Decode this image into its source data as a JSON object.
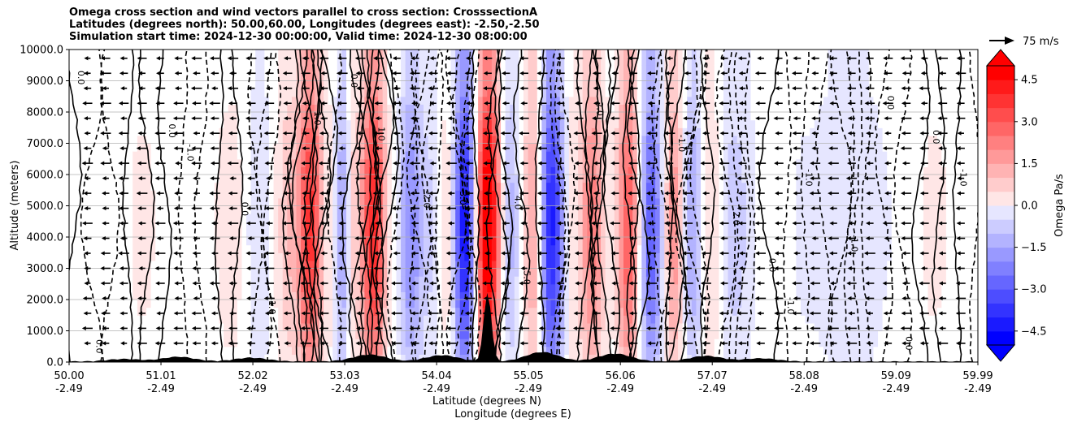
{
  "chart_data": {
    "type": "heatmap",
    "title_lines": [
      "Omega cross section and wind vectors parallel to cross section: CrosssectionA",
      "Latitudes (degrees north): 50.00,60.00, Longitudes (degrees east): -2.50,-2.50",
      "Simulation start time: 2024-12-30 00:00:00, Valid time: 2024-12-30 08:00:00"
    ],
    "ylabel": "Altitude (meters)",
    "xlabel_1": "Latitude (degrees N)",
    "xlabel_2": "Longitude (degrees E)",
    "ylim": [
      0,
      10000
    ],
    "xlim": [
      50.0,
      59.99
    ],
    "y_ticks": [
      {
        "value": 0,
        "label": "0.0"
      },
      {
        "value": 1000,
        "label": "1000.0"
      },
      {
        "value": 2000,
        "label": "2000.0"
      },
      {
        "value": 3000,
        "label": "3000.0"
      },
      {
        "value": 4000,
        "label": "4000.0"
      },
      {
        "value": 5000,
        "label": "5000.0"
      },
      {
        "value": 6000,
        "label": "6000.0"
      },
      {
        "value": 7000,
        "label": "7000.0"
      },
      {
        "value": 8000,
        "label": "8000.0"
      },
      {
        "value": 9000,
        "label": "9000.0"
      },
      {
        "value": 10000,
        "label": "10000.0"
      }
    ],
    "x_ticks": [
      {
        "value": 50.0,
        "lat": "50.00",
        "lon": "-2.49"
      },
      {
        "value": 51.01,
        "lat": "51.01",
        "lon": "-2.49"
      },
      {
        "value": 52.02,
        "lat": "52.02",
        "lon": "-2.49"
      },
      {
        "value": 53.03,
        "lat": "53.03",
        "lon": "-2.49"
      },
      {
        "value": 54.04,
        "lat": "54.04",
        "lon": "-2.49"
      },
      {
        "value": 55.05,
        "lat": "55.05",
        "lon": "-2.49"
      },
      {
        "value": 56.06,
        "lat": "56.06",
        "lon": "-2.49"
      },
      {
        "value": 57.07,
        "lat": "57.07",
        "lon": "-2.49"
      },
      {
        "value": 58.08,
        "lat": "58.08",
        "lon": "-2.49"
      },
      {
        "value": 59.09,
        "lat": "59.09",
        "lon": "-2.49"
      },
      {
        "value": 59.99,
        "lat": "59.99",
        "lon": "-2.49"
      }
    ],
    "colorbar": {
      "label": "Omega Pa/s",
      "min": -5.0,
      "max": 5.0,
      "step": 0.5,
      "ticks": [
        {
          "value": 4.5,
          "label": "4.5"
        },
        {
          "value": 3.0,
          "label": "3.0"
        },
        {
          "value": 1.5,
          "label": "1.5"
        },
        {
          "value": 0.0,
          "label": "0.0"
        },
        {
          "value": -1.5,
          "label": "−1.5"
        },
        {
          "value": -3.0,
          "label": "−3.0"
        },
        {
          "value": -4.5,
          "label": "−4.5"
        }
      ],
      "extend": "both"
    },
    "quiver_key": {
      "label": "75 m/s"
    },
    "omega_bands": [
      {
        "lat": 50.0,
        "omega": 0.2
      },
      {
        "lat": 50.4,
        "omega": -0.1
      },
      {
        "lat": 50.8,
        "omega": 0.3
      },
      {
        "lat": 51.3,
        "omega": -0.2
      },
      {
        "lat": 51.8,
        "omega": 0.4
      },
      {
        "lat": 52.1,
        "omega": -0.6
      },
      {
        "lat": 52.45,
        "omega": 1.2
      },
      {
        "lat": 52.65,
        "omega": 3.5
      },
      {
        "lat": 52.85,
        "omega": 0.5
      },
      {
        "lat": 53.0,
        "omega": -1.5
      },
      {
        "lat": 53.15,
        "omega": 1.0
      },
      {
        "lat": 53.35,
        "omega": 3.8
      },
      {
        "lat": 53.55,
        "omega": 0.2
      },
      {
        "lat": 53.75,
        "omega": -2.0
      },
      {
        "lat": 53.95,
        "omega": -0.8
      },
      {
        "lat": 54.15,
        "omega": 0.4
      },
      {
        "lat": 54.35,
        "omega": -4.0
      },
      {
        "lat": 54.6,
        "omega": 5.0
      },
      {
        "lat": 54.85,
        "omega": -1.2
      },
      {
        "lat": 55.1,
        "omega": 1.5
      },
      {
        "lat": 55.3,
        "omega": -3.8
      },
      {
        "lat": 55.55,
        "omega": 0.6
      },
      {
        "lat": 55.75,
        "omega": 2.2
      },
      {
        "lat": 55.95,
        "omega": 0.3
      },
      {
        "lat": 56.15,
        "omega": 2.8
      },
      {
        "lat": 56.4,
        "omega": -2.8
      },
      {
        "lat": 56.65,
        "omega": 1.8
      },
      {
        "lat": 56.85,
        "omega": -1.5
      },
      {
        "lat": 57.05,
        "omega": 0.6
      },
      {
        "lat": 57.3,
        "omega": -0.9
      },
      {
        "lat": 57.7,
        "omega": 0.1
      },
      {
        "lat": 58.1,
        "omega": -0.3
      },
      {
        "lat": 58.6,
        "omega": -0.6
      },
      {
        "lat": 59.1,
        "omega": -0.2
      },
      {
        "lat": 59.5,
        "omega": 0.3
      },
      {
        "lat": 59.99,
        "omega": -0.1
      }
    ],
    "contour_labels": [
      {
        "lat": 50.1,
        "alt": 9100,
        "text": "0.0"
      },
      {
        "lat": 51.1,
        "alt": 7400,
        "text": "0.0"
      },
      {
        "lat": 51.3,
        "alt": 6700,
        "text": "-1.0"
      },
      {
        "lat": 51.9,
        "alt": 4900,
        "text": "0.0"
      },
      {
        "lat": 52.7,
        "alt": 7800,
        "text": "1.0"
      },
      {
        "lat": 53.1,
        "alt": 9000,
        "text": "0.0"
      },
      {
        "lat": 53.4,
        "alt": 7300,
        "text": "1.0"
      },
      {
        "lat": 53.9,
        "alt": 5200,
        "text": "-2.0"
      },
      {
        "lat": 54.3,
        "alt": 5300,
        "text": "-3.0"
      },
      {
        "lat": 54.9,
        "alt": 5100,
        "text": "4.0"
      },
      {
        "lat": 55.0,
        "alt": 2700,
        "text": "5.0"
      },
      {
        "lat": 55.8,
        "alt": 8100,
        "text": "2.0"
      },
      {
        "lat": 56.7,
        "alt": 7000,
        "text": "-1.0"
      },
      {
        "lat": 57.3,
        "alt": 4600,
        "text": "2.0"
      },
      {
        "lat": 57.7,
        "alt": 3100,
        "text": "0.0"
      },
      {
        "lat": 57.9,
        "alt": 1800,
        "text": "-1.0"
      },
      {
        "lat": 58.1,
        "alt": 5900,
        "text": "-1.0"
      },
      {
        "lat": 58.6,
        "alt": 3800,
        "text": "-1.0"
      },
      {
        "lat": 59.0,
        "alt": 8300,
        "text": "0.0"
      },
      {
        "lat": 59.5,
        "alt": 7200,
        "text": "0.0"
      },
      {
        "lat": 59.8,
        "alt": 5900,
        "text": "-1.0"
      },
      {
        "lat": 59.2,
        "alt": 600,
        "text": "0.0"
      },
      {
        "lat": 52.2,
        "alt": 1800,
        "text": "-1.0"
      },
      {
        "lat": 50.3,
        "alt": 500,
        "text": "0.0"
      }
    ],
    "terrain_peaks": [
      {
        "lat": 50.6,
        "alt": 80
      },
      {
        "lat": 51.2,
        "alt": 150
      },
      {
        "lat": 52.0,
        "alt": 120
      },
      {
        "lat": 53.3,
        "alt": 220
      },
      {
        "lat": 54.1,
        "alt": 200
      },
      {
        "lat": 54.6,
        "alt": 2200
      },
      {
        "lat": 55.2,
        "alt": 300
      },
      {
        "lat": 56.0,
        "alt": 250
      },
      {
        "lat": 57.0,
        "alt": 180
      },
      {
        "lat": 57.6,
        "alt": 100
      }
    ]
  }
}
